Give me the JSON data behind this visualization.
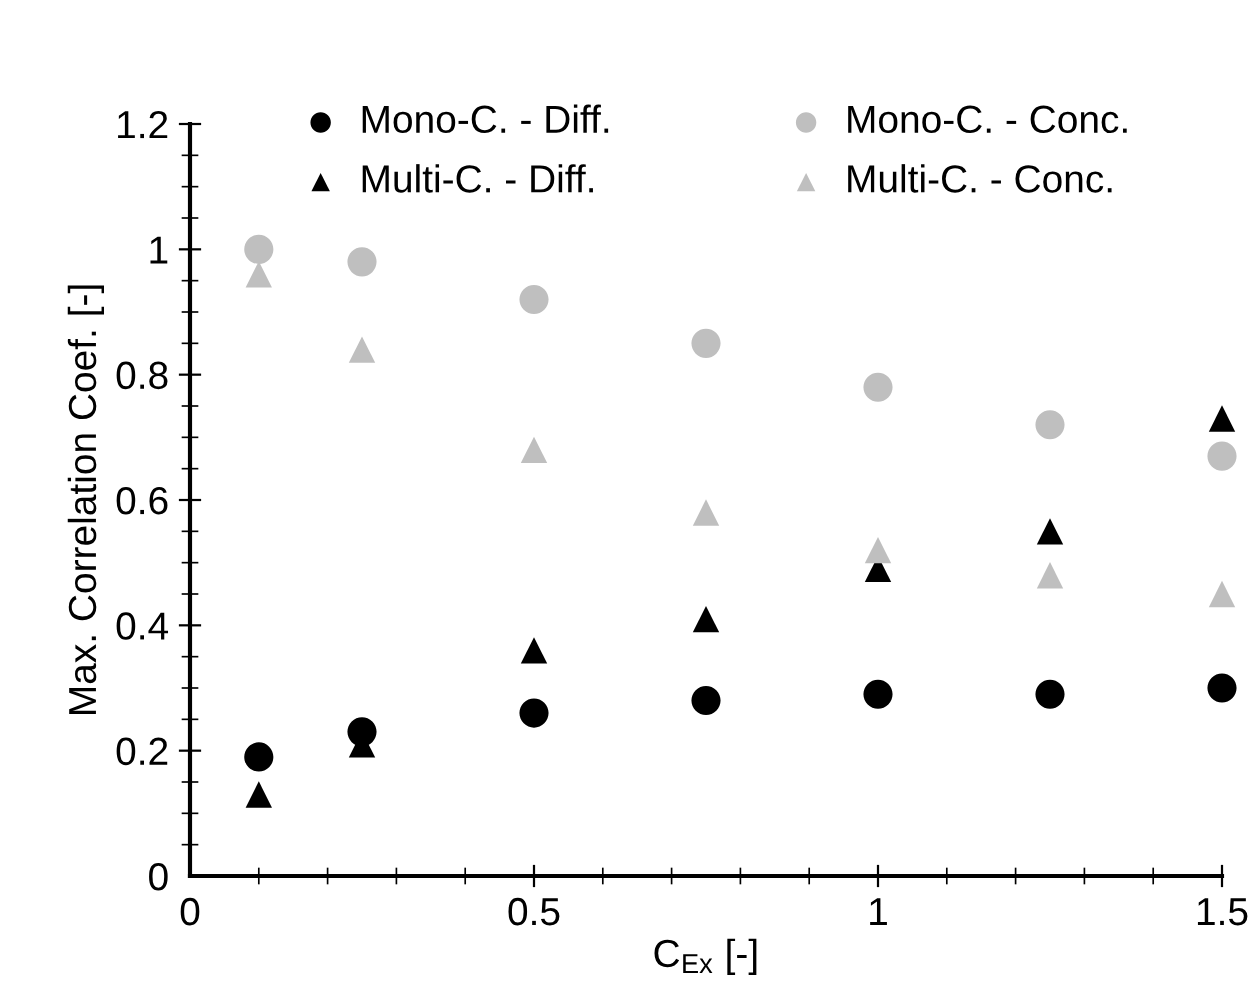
{
  "chart_data": {
    "type": "scatter",
    "xlabel": "C$_{Ex}$ [-]",
    "ylabel": "Max. Correlation Coef. [-]",
    "x": [
      0.1,
      0.25,
      0.5,
      0.75,
      1,
      1.25,
      1.5
    ],
    "series": [
      {
        "name": "Mono-C. - Diff.",
        "color": "#000000",
        "marker": "circle",
        "values": [
          0.19,
          0.23,
          0.26,
          0.28,
          0.29,
          0.29,
          0.3
        ]
      },
      {
        "name": "Mono-C. - Conc.",
        "color": "#bfbfbf",
        "marker": "circle",
        "values": [
          1.0,
          0.98,
          0.92,
          0.85,
          0.78,
          0.72,
          0.67
        ]
      },
      {
        "name": "Multi-C. - Diff.",
        "color": "#000000",
        "marker": "triangle",
        "values": [
          0.13,
          0.21,
          0.36,
          0.41,
          0.49,
          0.55,
          0.73
        ]
      },
      {
        "name": "Multi-C. - Conc.",
        "color": "#bfbfbf",
        "marker": "triangle",
        "values": [
          0.96,
          0.84,
          0.68,
          0.58,
          0.52,
          0.48,
          0.45
        ]
      }
    ],
    "xlim": [
      0,
      1.5
    ],
    "xticks": [
      0,
      0.5,
      1,
      1.5
    ],
    "ylim": [
      0,
      1.2
    ],
    "yticks": [
      0,
      0.2,
      0.4,
      0.6,
      0.8,
      1,
      1.2
    ],
    "grid": false,
    "legend": "top"
  }
}
